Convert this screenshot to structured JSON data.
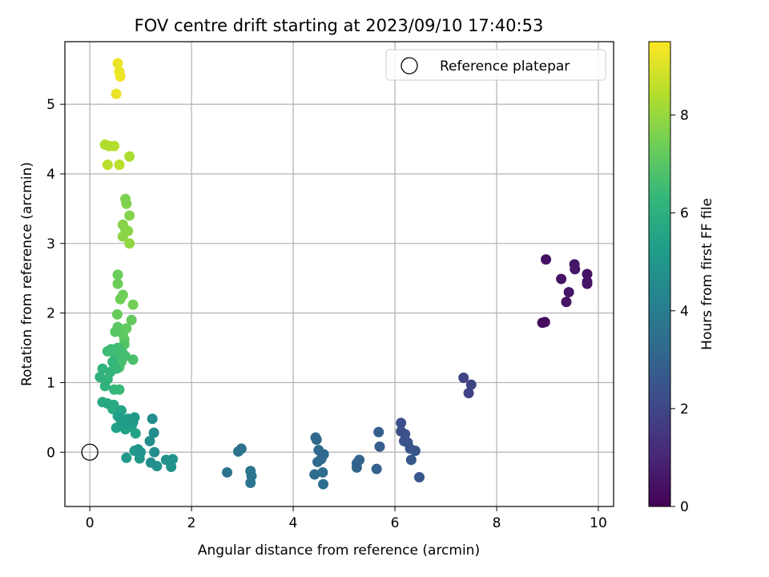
{
  "chart_data": {
    "type": "scatter",
    "title": "FOV centre drift starting at 2023/09/10 17:40:53",
    "xlabel": "Angular distance from reference (arcmin)",
    "ylabel": "Rotation from reference (arcmin)",
    "xlim": [
      -0.49,
      10.3
    ],
    "ylim": [
      -0.78,
      5.9
    ],
    "xticks": [
      0,
      2,
      4,
      6,
      8,
      10
    ],
    "yticks": [
      0,
      1,
      2,
      3,
      4,
      5
    ],
    "grid": true,
    "legend": {
      "placement": "top-right",
      "entries": [
        "Reference platepar"
      ]
    },
    "reference_point": {
      "x": 0,
      "y": 0,
      "label": "Reference platepar"
    },
    "colorbar": {
      "label": "Hours from first FF file",
      "range": [
        0,
        9.5
      ],
      "ticks": [
        0,
        2,
        4,
        6,
        8
      ],
      "colormap": "viridis",
      "stops": [
        "#440154",
        "#482878",
        "#3e4a89",
        "#31688e",
        "#26828e",
        "#1f9e89",
        "#35b779",
        "#6ece58",
        "#b5de2b",
        "#fde725"
      ]
    },
    "points": [
      {
        "x": 8.9,
        "y": 1.86,
        "c": 0.3
      },
      {
        "x": 8.95,
        "y": 1.87,
        "c": 0.35
      },
      {
        "x": 8.97,
        "y": 2.77,
        "c": 0.4
      },
      {
        "x": 9.27,
        "y": 2.49,
        "c": 0.5
      },
      {
        "x": 9.37,
        "y": 2.16,
        "c": 0.5
      },
      {
        "x": 9.42,
        "y": 2.3,
        "c": 0.55
      },
      {
        "x": 9.53,
        "y": 2.7,
        "c": 0.6
      },
      {
        "x": 9.54,
        "y": 2.63,
        "c": 0.6
      },
      {
        "x": 9.78,
        "y": 2.56,
        "c": 0.5
      },
      {
        "x": 9.78,
        "y": 2.42,
        "c": 0.55
      },
      {
        "x": 9.78,
        "y": 2.45,
        "c": 0.6
      },
      {
        "x": 7.35,
        "y": 1.07,
        "c": 1.9
      },
      {
        "x": 7.45,
        "y": 0.85,
        "c": 1.9
      },
      {
        "x": 7.5,
        "y": 0.97,
        "c": 1.95
      },
      {
        "x": 6.12,
        "y": 0.42,
        "c": 2.3
      },
      {
        "x": 6.12,
        "y": 0.3,
        "c": 2.3
      },
      {
        "x": 6.2,
        "y": 0.26,
        "c": 2.4
      },
      {
        "x": 6.25,
        "y": 0.14,
        "c": 2.45
      },
      {
        "x": 6.18,
        "y": 0.16,
        "c": 2.5
      },
      {
        "x": 6.3,
        "y": 0.05,
        "c": 2.5
      },
      {
        "x": 6.4,
        "y": 0.02,
        "c": 2.55
      },
      {
        "x": 6.32,
        "y": -0.11,
        "c": 2.6
      },
      {
        "x": 6.48,
        "y": -0.36,
        "c": 2.6
      },
      {
        "x": 5.68,
        "y": 0.29,
        "c": 2.8
      },
      {
        "x": 5.7,
        "y": 0.08,
        "c": 2.8
      },
      {
        "x": 5.64,
        "y": -0.24,
        "c": 2.9
      },
      {
        "x": 5.3,
        "y": -0.11,
        "c": 3.0
      },
      {
        "x": 5.25,
        "y": -0.16,
        "c": 3.0
      },
      {
        "x": 5.25,
        "y": -0.22,
        "c": 3.05
      },
      {
        "x": 4.44,
        "y": 0.21,
        "c": 3.2
      },
      {
        "x": 4.46,
        "y": 0.18,
        "c": 3.2
      },
      {
        "x": 4.5,
        "y": 0.03,
        "c": 3.25
      },
      {
        "x": 4.6,
        "y": -0.03,
        "c": 3.3
      },
      {
        "x": 4.57,
        "y": -0.06,
        "c": 3.3
      },
      {
        "x": 4.48,
        "y": -0.14,
        "c": 3.3
      },
      {
        "x": 4.55,
        "y": -0.1,
        "c": 3.35
      },
      {
        "x": 4.42,
        "y": -0.32,
        "c": 3.35
      },
      {
        "x": 4.58,
        "y": -0.29,
        "c": 3.4
      },
      {
        "x": 4.59,
        "y": -0.46,
        "c": 3.4
      },
      {
        "x": 2.98,
        "y": 0.05,
        "c": 3.6
      },
      {
        "x": 2.92,
        "y": 0.01,
        "c": 3.6
      },
      {
        "x": 3.16,
        "y": -0.27,
        "c": 3.7
      },
      {
        "x": 3.18,
        "y": -0.34,
        "c": 3.7
      },
      {
        "x": 3.16,
        "y": -0.44,
        "c": 3.75
      },
      {
        "x": 2.7,
        "y": -0.29,
        "c": 3.6
      },
      {
        "x": 1.23,
        "y": 0.48,
        "c": 4.6
      },
      {
        "x": 1.26,
        "y": 0.28,
        "c": 4.6
      },
      {
        "x": 1.18,
        "y": 0.16,
        "c": 4.65
      },
      {
        "x": 1.27,
        "y": 0.0,
        "c": 4.7
      },
      {
        "x": 1.2,
        "y": -0.15,
        "c": 4.7
      },
      {
        "x": 1.32,
        "y": -0.2,
        "c": 4.75
      },
      {
        "x": 1.5,
        "y": -0.11,
        "c": 4.8
      },
      {
        "x": 1.6,
        "y": -0.21,
        "c": 4.85
      },
      {
        "x": 1.63,
        "y": -0.1,
        "c": 4.9
      },
      {
        "x": 1.0,
        "y": 0.0,
        "c": 4.95
      },
      {
        "x": 0.98,
        "y": -0.09,
        "c": 5.0
      },
      {
        "x": 0.95,
        "y": 0.04,
        "c": 5.0
      },
      {
        "x": 0.88,
        "y": 0.02,
        "c": 5.05
      },
      {
        "x": 0.72,
        "y": -0.08,
        "c": 5.1
      },
      {
        "x": 0.88,
        "y": 0.5,
        "c": 5.1
      },
      {
        "x": 0.85,
        "y": 0.43,
        "c": 5.2
      },
      {
        "x": 0.75,
        "y": 0.48,
        "c": 5.2
      },
      {
        "x": 0.68,
        "y": 0.4,
        "c": 5.25
      },
      {
        "x": 0.62,
        "y": 0.45,
        "c": 5.3
      },
      {
        "x": 0.58,
        "y": 0.5,
        "c": 5.3
      },
      {
        "x": 0.6,
        "y": 0.38,
        "c": 5.35
      },
      {
        "x": 0.7,
        "y": 0.33,
        "c": 5.4
      },
      {
        "x": 0.82,
        "y": 0.37,
        "c": 5.4
      },
      {
        "x": 0.9,
        "y": 0.27,
        "c": 5.45
      },
      {
        "x": 0.52,
        "y": 0.35,
        "c": 5.5
      },
      {
        "x": 0.55,
        "y": 0.52,
        "c": 5.5
      },
      {
        "x": 0.62,
        "y": 0.6,
        "c": 5.55
      },
      {
        "x": 0.25,
        "y": 0.72,
        "c": 5.7
      },
      {
        "x": 0.35,
        "y": 0.7,
        "c": 5.75
      },
      {
        "x": 0.47,
        "y": 0.68,
        "c": 5.8
      },
      {
        "x": 0.45,
        "y": 0.62,
        "c": 5.85
      },
      {
        "x": 0.2,
        "y": 1.08,
        "c": 6.1
      },
      {
        "x": 0.3,
        "y": 0.95,
        "c": 6.1
      },
      {
        "x": 0.25,
        "y": 1.2,
        "c": 6.15
      },
      {
        "x": 0.35,
        "y": 1.05,
        "c": 6.2
      },
      {
        "x": 0.4,
        "y": 1.15,
        "c": 6.25
      },
      {
        "x": 0.48,
        "y": 0.9,
        "c": 6.3
      },
      {
        "x": 0.45,
        "y": 1.3,
        "c": 6.3
      },
      {
        "x": 0.52,
        "y": 1.2,
        "c": 6.35
      },
      {
        "x": 0.58,
        "y": 0.9,
        "c": 6.4
      },
      {
        "x": 0.35,
        "y": 1.45,
        "c": 6.5
      },
      {
        "x": 0.42,
        "y": 1.48,
        "c": 6.5
      },
      {
        "x": 0.5,
        "y": 1.38,
        "c": 6.55
      },
      {
        "x": 0.55,
        "y": 1.5,
        "c": 6.6
      },
      {
        "x": 0.6,
        "y": 1.45,
        "c": 6.6
      },
      {
        "x": 0.65,
        "y": 1.42,
        "c": 6.65
      },
      {
        "x": 0.7,
        "y": 1.38,
        "c": 6.7
      },
      {
        "x": 0.62,
        "y": 1.3,
        "c": 6.7
      },
      {
        "x": 0.85,
        "y": 1.33,
        "c": 6.75
      },
      {
        "x": 0.58,
        "y": 1.22,
        "c": 6.8
      },
      {
        "x": 0.48,
        "y": 1.25,
        "c": 6.85
      },
      {
        "x": 0.68,
        "y": 1.55,
        "c": 6.9
      },
      {
        "x": 0.5,
        "y": 1.73,
        "c": 7.0
      },
      {
        "x": 0.55,
        "y": 1.8,
        "c": 7.05
      },
      {
        "x": 0.65,
        "y": 1.7,
        "c": 7.1
      },
      {
        "x": 0.72,
        "y": 1.78,
        "c": 7.15
      },
      {
        "x": 0.82,
        "y": 1.9,
        "c": 7.2
      },
      {
        "x": 0.68,
        "y": 1.62,
        "c": 7.2
      },
      {
        "x": 0.54,
        "y": 1.98,
        "c": 7.25
      },
      {
        "x": 0.55,
        "y": 2.55,
        "c": 7.3
      },
      {
        "x": 0.55,
        "y": 2.42,
        "c": 7.35
      },
      {
        "x": 0.6,
        "y": 2.2,
        "c": 7.4
      },
      {
        "x": 0.65,
        "y": 2.26,
        "c": 7.4
      },
      {
        "x": 0.85,
        "y": 2.12,
        "c": 7.45
      },
      {
        "x": 0.7,
        "y": 3.64,
        "c": 7.6
      },
      {
        "x": 0.72,
        "y": 3.57,
        "c": 7.65
      },
      {
        "x": 0.78,
        "y": 3.4,
        "c": 7.7
      },
      {
        "x": 0.65,
        "y": 3.27,
        "c": 7.75
      },
      {
        "x": 0.7,
        "y": 3.2,
        "c": 7.8
      },
      {
        "x": 0.75,
        "y": 3.18,
        "c": 7.8
      },
      {
        "x": 0.65,
        "y": 3.1,
        "c": 7.85
      },
      {
        "x": 0.78,
        "y": 3.0,
        "c": 7.9
      },
      {
        "x": 0.3,
        "y": 4.42,
        "c": 8.4
      },
      {
        "x": 0.38,
        "y": 4.4,
        "c": 8.4
      },
      {
        "x": 0.48,
        "y": 4.4,
        "c": 8.45
      },
      {
        "x": 0.35,
        "y": 4.13,
        "c": 8.5
      },
      {
        "x": 0.58,
        "y": 4.13,
        "c": 8.5
      },
      {
        "x": 0.78,
        "y": 4.25,
        "c": 8.3
      },
      {
        "x": 0.55,
        "y": 5.59,
        "c": 9.2
      },
      {
        "x": 0.58,
        "y": 5.47,
        "c": 9.25
      },
      {
        "x": 0.6,
        "y": 5.4,
        "c": 9.3
      },
      {
        "x": 0.52,
        "y": 5.15,
        "c": 9.2
      }
    ]
  }
}
